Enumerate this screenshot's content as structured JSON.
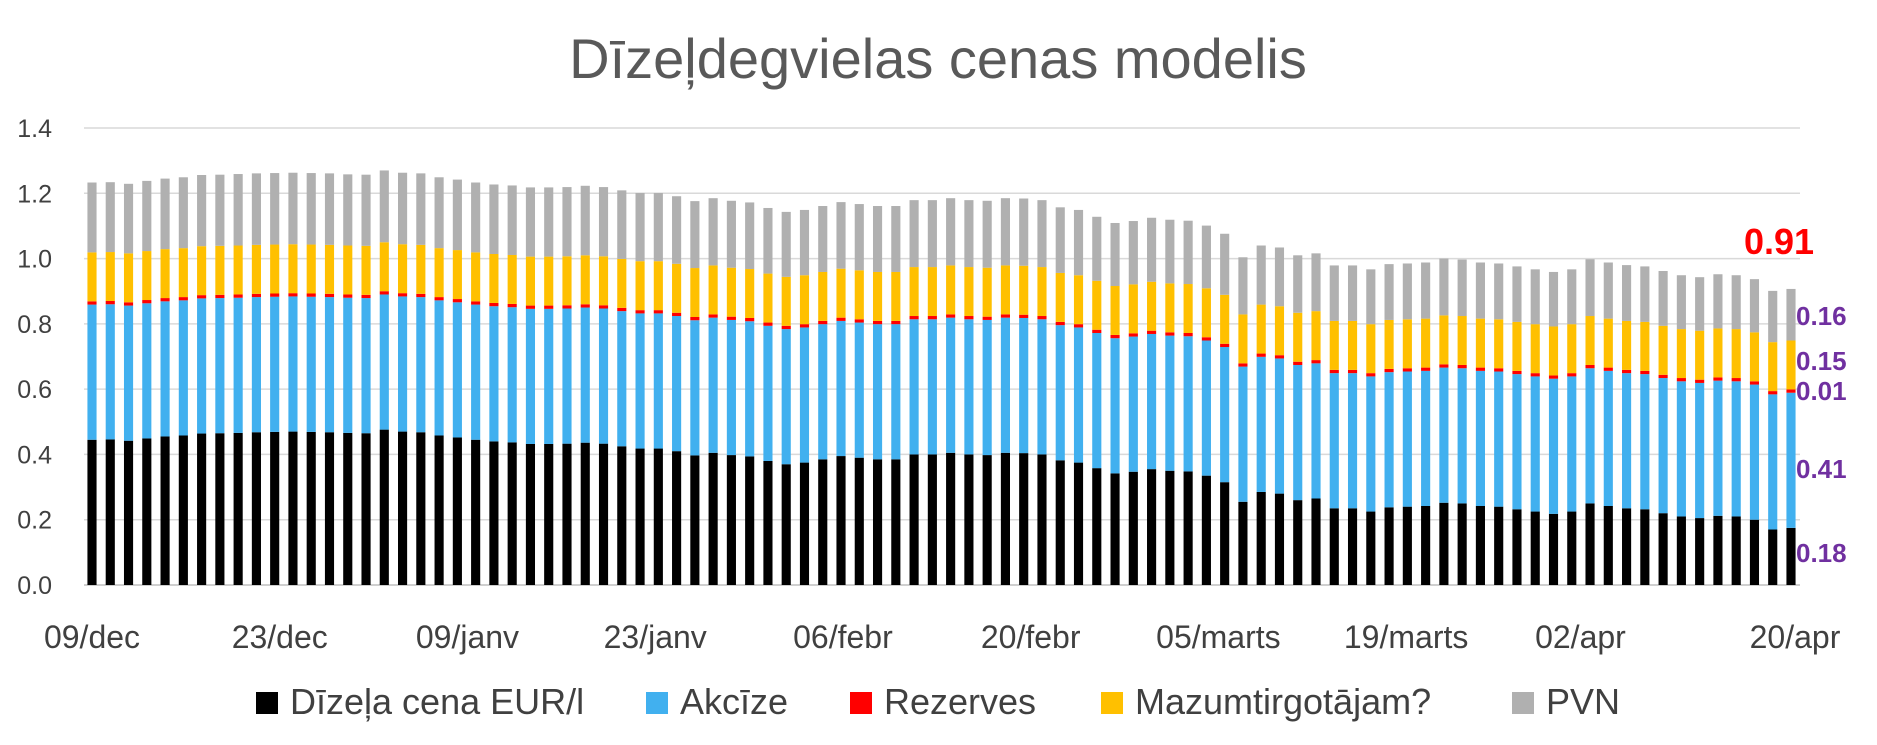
{
  "chart_data": {
    "type": "bar",
    "stacked": true,
    "title": "Dīzeļdegvielas cenas modelis",
    "xlabel": "",
    "ylabel": "",
    "ylim": [
      0,
      1.4
    ],
    "yticks": [
      "0.0",
      "0.2",
      "0.4",
      "0.6",
      "0.8",
      "1.0",
      "1.2",
      "1.4"
    ],
    "grid": true,
    "legend_position": "bottom",
    "x_tick_labels": [
      "09/dec",
      "23/dec",
      "09/janv",
      "23/janv",
      "06/febr",
      "20/febr",
      "05/marts",
      "19/marts",
      "02/apr",
      "20/apr"
    ],
    "series": [
      {
        "name": "Dīzeļa cena EUR/l",
        "color": "#000000"
      },
      {
        "name": "Akcīze",
        "color": "#41b0ef"
      },
      {
        "name": "Rezerves",
        "color": "#ff0000"
      },
      {
        "name": "Mazumtirgotājam?",
        "color": "#ffc000"
      },
      {
        "name": "PVN",
        "color": "#b0b0b0"
      }
    ],
    "series_values": {
      "diesel": [
        0.445,
        0.446,
        0.442,
        0.449,
        0.455,
        0.458,
        0.464,
        0.465,
        0.466,
        0.468,
        0.469,
        0.47,
        0.469,
        0.468,
        0.466,
        0.465,
        0.476,
        0.47,
        0.468,
        0.458,
        0.452,
        0.445,
        0.44,
        0.437,
        0.432,
        0.432,
        0.433,
        0.436,
        0.433,
        0.425,
        0.418,
        0.418,
        0.41,
        0.397,
        0.405,
        0.398,
        0.394,
        0.38,
        0.37,
        0.375,
        0.385,
        0.395,
        0.39,
        0.385,
        0.385,
        0.4,
        0.4,
        0.405,
        0.4,
        0.398,
        0.405,
        0.404,
        0.4,
        0.382,
        0.375,
        0.358,
        0.342,
        0.347,
        0.355,
        0.35,
        0.348,
        0.335,
        0.315,
        0.255,
        0.285,
        0.28,
        0.26,
        0.265,
        0.235,
        0.235,
        0.225,
        0.238,
        0.24,
        0.242,
        0.252,
        0.25,
        0.242,
        0.24,
        0.232,
        0.225,
        0.218,
        0.225,
        0.25,
        0.242,
        0.235,
        0.232,
        0.22,
        0.21,
        0.205,
        0.212,
        0.21,
        0.2,
        0.17,
        0.175
      ],
      "akcize": [
        0.414,
        0.414,
        0.414,
        0.414,
        0.414,
        0.414,
        0.414,
        0.414,
        0.414,
        0.414,
        0.414,
        0.414,
        0.414,
        0.414,
        0.414,
        0.414,
        0.414,
        0.414,
        0.414,
        0.414,
        0.414,
        0.414,
        0.414,
        0.414,
        0.414,
        0.414,
        0.414,
        0.414,
        0.414,
        0.414,
        0.414,
        0.414,
        0.414,
        0.414,
        0.414,
        0.414,
        0.414,
        0.414,
        0.414,
        0.414,
        0.414,
        0.414,
        0.414,
        0.414,
        0.414,
        0.414,
        0.414,
        0.414,
        0.414,
        0.414,
        0.414,
        0.414,
        0.414,
        0.414,
        0.414,
        0.414,
        0.414,
        0.414,
        0.414,
        0.414,
        0.414,
        0.414,
        0.414,
        0.414,
        0.414,
        0.414,
        0.414,
        0.414,
        0.414,
        0.414,
        0.414,
        0.414,
        0.414,
        0.414,
        0.414,
        0.414,
        0.414,
        0.414,
        0.414,
        0.414,
        0.414,
        0.414,
        0.414,
        0.414,
        0.414,
        0.414,
        0.414,
        0.414,
        0.414,
        0.414,
        0.414,
        0.414,
        0.414,
        0.414
      ],
      "rezerves": [
        0.01,
        0.01,
        0.01,
        0.01,
        0.01,
        0.01,
        0.01,
        0.01,
        0.01,
        0.01,
        0.01,
        0.01,
        0.01,
        0.01,
        0.01,
        0.01,
        0.01,
        0.01,
        0.01,
        0.01,
        0.01,
        0.01,
        0.01,
        0.01,
        0.01,
        0.01,
        0.01,
        0.01,
        0.01,
        0.01,
        0.01,
        0.01,
        0.01,
        0.01,
        0.01,
        0.01,
        0.01,
        0.01,
        0.01,
        0.01,
        0.01,
        0.01,
        0.01,
        0.01,
        0.01,
        0.01,
        0.01,
        0.01,
        0.01,
        0.01,
        0.01,
        0.01,
        0.01,
        0.01,
        0.01,
        0.01,
        0.01,
        0.01,
        0.01,
        0.01,
        0.01,
        0.01,
        0.01,
        0.01,
        0.01,
        0.01,
        0.01,
        0.01,
        0.01,
        0.01,
        0.01,
        0.01,
        0.01,
        0.01,
        0.01,
        0.01,
        0.01,
        0.01,
        0.01,
        0.01,
        0.01,
        0.01,
        0.01,
        0.01,
        0.01,
        0.01,
        0.01,
        0.01,
        0.01,
        0.01,
        0.01,
        0.01,
        0.01,
        0.01
      ],
      "mazumtirg": [
        0.15,
        0.15,
        0.15,
        0.15,
        0.15,
        0.15,
        0.15,
        0.15,
        0.15,
        0.15,
        0.15,
        0.15,
        0.15,
        0.15,
        0.15,
        0.15,
        0.15,
        0.15,
        0.15,
        0.15,
        0.15,
        0.15,
        0.15,
        0.15,
        0.15,
        0.15,
        0.15,
        0.15,
        0.15,
        0.15,
        0.15,
        0.15,
        0.15,
        0.15,
        0.15,
        0.15,
        0.15,
        0.15,
        0.15,
        0.15,
        0.15,
        0.15,
        0.15,
        0.15,
        0.15,
        0.15,
        0.15,
        0.15,
        0.15,
        0.15,
        0.15,
        0.15,
        0.15,
        0.15,
        0.15,
        0.15,
        0.15,
        0.15,
        0.15,
        0.15,
        0.15,
        0.15,
        0.15,
        0.15,
        0.15,
        0.15,
        0.15,
        0.15,
        0.15,
        0.15,
        0.15,
        0.15,
        0.15,
        0.15,
        0.15,
        0.15,
        0.15,
        0.15,
        0.15,
        0.15,
        0.15,
        0.15,
        0.15,
        0.15,
        0.15,
        0.15,
        0.15,
        0.15,
        0.15,
        0.15,
        0.15,
        0.15,
        0.15,
        0.15
      ],
      "pvn": [
        0.214,
        0.214,
        0.213,
        0.215,
        0.216,
        0.217,
        0.218,
        0.218,
        0.219,
        0.219,
        0.219,
        0.219,
        0.219,
        0.219,
        0.218,
        0.218,
        0.22,
        0.219,
        0.219,
        0.217,
        0.216,
        0.214,
        0.213,
        0.213,
        0.212,
        0.212,
        0.212,
        0.213,
        0.212,
        0.21,
        0.209,
        0.209,
        0.207,
        0.205,
        0.206,
        0.205,
        0.204,
        0.201,
        0.199,
        0.2,
        0.202,
        0.204,
        0.203,
        0.202,
        0.202,
        0.205,
        0.205,
        0.206,
        0.205,
        0.205,
        0.206,
        0.206,
        0.205,
        0.201,
        0.2,
        0.196,
        0.193,
        0.194,
        0.196,
        0.195,
        0.194,
        0.192,
        0.187,
        0.175,
        0.181,
        0.18,
        0.176,
        0.177,
        0.17,
        0.17,
        0.168,
        0.171,
        0.171,
        0.172,
        0.174,
        0.173,
        0.172,
        0.171,
        0.17,
        0.168,
        0.167,
        0.168,
        0.174,
        0.172,
        0.171,
        0.17,
        0.168,
        0.165,
        0.164,
        0.166,
        0.165,
        0.163,
        0.157,
        0.158
      ]
    },
    "annotations": {
      "total": "0.91",
      "segments": [
        "0.16",
        "0.15",
        "0.01",
        "0.41",
        "0.18"
      ]
    }
  }
}
